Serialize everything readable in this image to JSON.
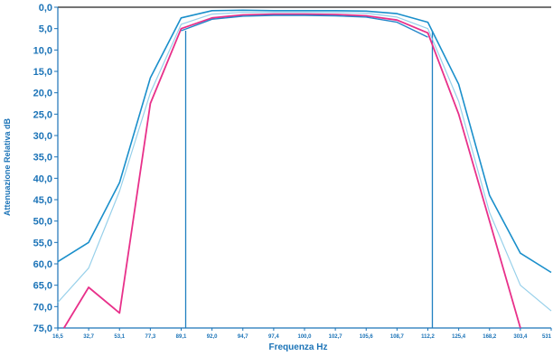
{
  "chart_data": {
    "type": "line",
    "title": "",
    "xlabel": "Frequenza Hz",
    "ylabel": "Attenuazione Relativa dB",
    "x_tick_labels": [
      "16,5",
      "32,7",
      "53,1",
      "77,3",
      "89,1",
      "92,0",
      "94,7",
      "97,4",
      "100,0",
      "102,7",
      "105,6",
      "108,7",
      "112,2",
      "125,4",
      "168,2",
      "303,4",
      "531"
    ],
    "y_tick_labels": [
      "0,0",
      "5,0",
      "10,0",
      "15,0",
      "20,0",
      "25,0",
      "30,0",
      "35,0",
      "40,0",
      "45,0",
      "50,0",
      "55,0",
      "60,0",
      "65,0",
      "70,0",
      "75,0"
    ],
    "ylim": [
      0,
      75
    ],
    "y_inverted": true,
    "grid": false,
    "legend": "none",
    "vertical_markers_at_tick_index": [
      4,
      12
    ],
    "series": [
      {
        "color": "#1a8fcb",
        "width": 1.6,
        "opacity": 1,
        "values": [
          59.5,
          55.0,
          41.0,
          16.5,
          2.5,
          0.8,
          0.7,
          0.8,
          0.8,
          0.8,
          0.9,
          1.5,
          3.5,
          18.0,
          44.0,
          57.5,
          62.0
        ]
      },
      {
        "color": "#e8308a",
        "width": 1.8,
        "opacity": 1,
        "values": [
          null,
          65.5,
          71.5,
          22.5,
          5.0,
          2.5,
          1.8,
          1.6,
          1.6,
          1.7,
          2.0,
          3.0,
          6.0,
          25.0,
          50.0,
          75.0,
          null
        ],
        "start": {
          "x_index": 0.2,
          "value": 75.0
        }
      },
      {
        "color": "#2486c9",
        "width": 1.4,
        "opacity": 1,
        "values": [
          null,
          null,
          null,
          null,
          5.5,
          2.8,
          2.1,
          1.9,
          1.9,
          2.0,
          2.3,
          3.5,
          7.0,
          null,
          null,
          null,
          null
        ]
      },
      {
        "color": "#8ccbe8",
        "width": 1.2,
        "opacity": 0.9,
        "values": [
          69.0,
          61.0,
          43.0,
          20.0,
          4.0,
          1.6,
          1.2,
          1.2,
          1.2,
          1.2,
          1.4,
          2.3,
          5.0,
          22.0,
          48.0,
          65.0,
          71.0
        ]
      }
    ]
  }
}
